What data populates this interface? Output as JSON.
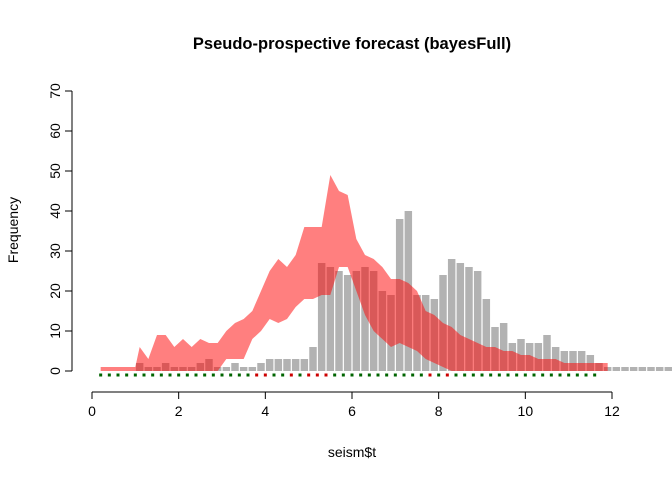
{
  "chart_data": {
    "type": "bar",
    "title": "Pseudo-prospective forecast (bayesFull)",
    "xlabel": "seism$t",
    "ylabel": "Frequency",
    "xlim": [
      0,
      12
    ],
    "ylim": [
      0,
      70
    ],
    "x_ticks": [
      "0",
      "2",
      "4",
      "6",
      "8",
      "10",
      "12"
    ],
    "y_ticks": [
      "0",
      "10",
      "20",
      "30",
      "40",
      "50",
      "60",
      "70"
    ],
    "bin_width": 0.2,
    "bin_start": 0.2,
    "colors": {
      "bars": "#b2b2b2",
      "band": "#ff0000",
      "band_opacity": 0.5,
      "marks_green": "#006400",
      "marks_red": "#cc0000"
    },
    "series": [
      {
        "name": "",
        "kind": "histogram",
        "values": [
          0,
          0,
          0,
          0,
          2,
          1,
          1,
          2,
          1,
          1,
          1,
          2,
          3,
          1,
          1,
          2,
          1,
          1,
          2,
          3,
          3,
          3,
          3,
          3,
          6,
          27,
          26,
          25,
          24,
          25,
          26,
          25,
          20,
          19,
          38,
          40,
          19,
          19,
          18,
          24,
          28,
          27,
          26,
          25,
          18,
          11,
          12,
          7,
          8,
          7,
          7,
          9,
          6,
          5,
          5,
          5,
          4,
          2,
          1,
          1,
          1,
          1,
          1,
          1,
          1,
          1,
          1,
          1,
          0,
          0,
          0,
          0,
          0,
          0,
          0,
          0,
          0,
          0,
          0,
          0,
          0,
          0,
          0,
          0,
          0,
          0,
          0,
          0,
          0
        ]
      },
      {
        "name": "",
        "kind": "interval",
        "x": [
          0.2,
          0.3,
          0.9,
          1.0,
          1.1,
          1.3,
          1.5,
          1.7,
          1.9,
          2.1,
          2.3,
          2.5,
          2.7,
          2.9,
          3.1,
          3.3,
          3.5,
          3.7,
          3.9,
          4.1,
          4.3,
          4.5,
          4.7,
          4.9,
          5.1,
          5.3,
          5.5,
          5.7,
          5.9,
          6.1,
          6.3,
          6.5,
          6.7,
          6.9,
          7.1,
          7.3,
          7.5,
          7.7,
          7.9,
          8.1,
          8.3,
          8.5,
          8.7,
          8.9,
          9.1,
          9.3,
          9.5,
          9.7,
          9.9,
          10.1,
          10.3,
          10.5,
          10.7,
          10.9,
          11.1,
          11.3,
          11.5,
          11.7,
          11.9
        ],
        "upper": [
          1,
          1,
          1,
          1,
          6,
          3,
          9,
          9,
          6,
          8,
          6,
          8,
          7,
          7,
          10,
          12,
          13,
          15,
          20,
          25,
          28,
          26,
          29,
          36,
          36,
          36,
          49,
          45,
          44,
          33,
          29,
          28,
          26,
          23,
          23,
          22,
          20,
          15,
          14,
          12,
          11,
          9,
          8,
          7,
          6,
          6,
          5,
          5,
          4,
          4,
          3,
          3,
          3,
          2,
          2,
          2,
          2,
          2,
          2
        ],
        "lower": [
          0,
          0,
          0,
          0,
          0,
          0,
          0,
          0,
          0,
          0,
          0,
          0,
          0,
          0,
          3,
          3,
          3,
          8,
          10,
          13,
          12,
          13,
          16,
          18,
          18,
          19,
          19,
          26,
          26,
          20,
          14,
          10,
          8,
          6,
          7,
          6,
          5,
          3,
          2,
          1,
          0,
          0,
          0,
          0,
          0,
          0,
          0,
          0,
          0,
          0,
          0,
          0,
          0,
          0,
          0,
          0,
          0,
          0,
          0
        ]
      }
    ],
    "marks": {
      "y": -1,
      "x_start": 0.2,
      "step": 0.2,
      "count": 58,
      "red_at": [
        3.8,
        4.0,
        4.6,
        5.0,
        5.2,
        5.4,
        7.8,
        8.2
      ]
    },
    "grid": false,
    "legend": "none"
  }
}
